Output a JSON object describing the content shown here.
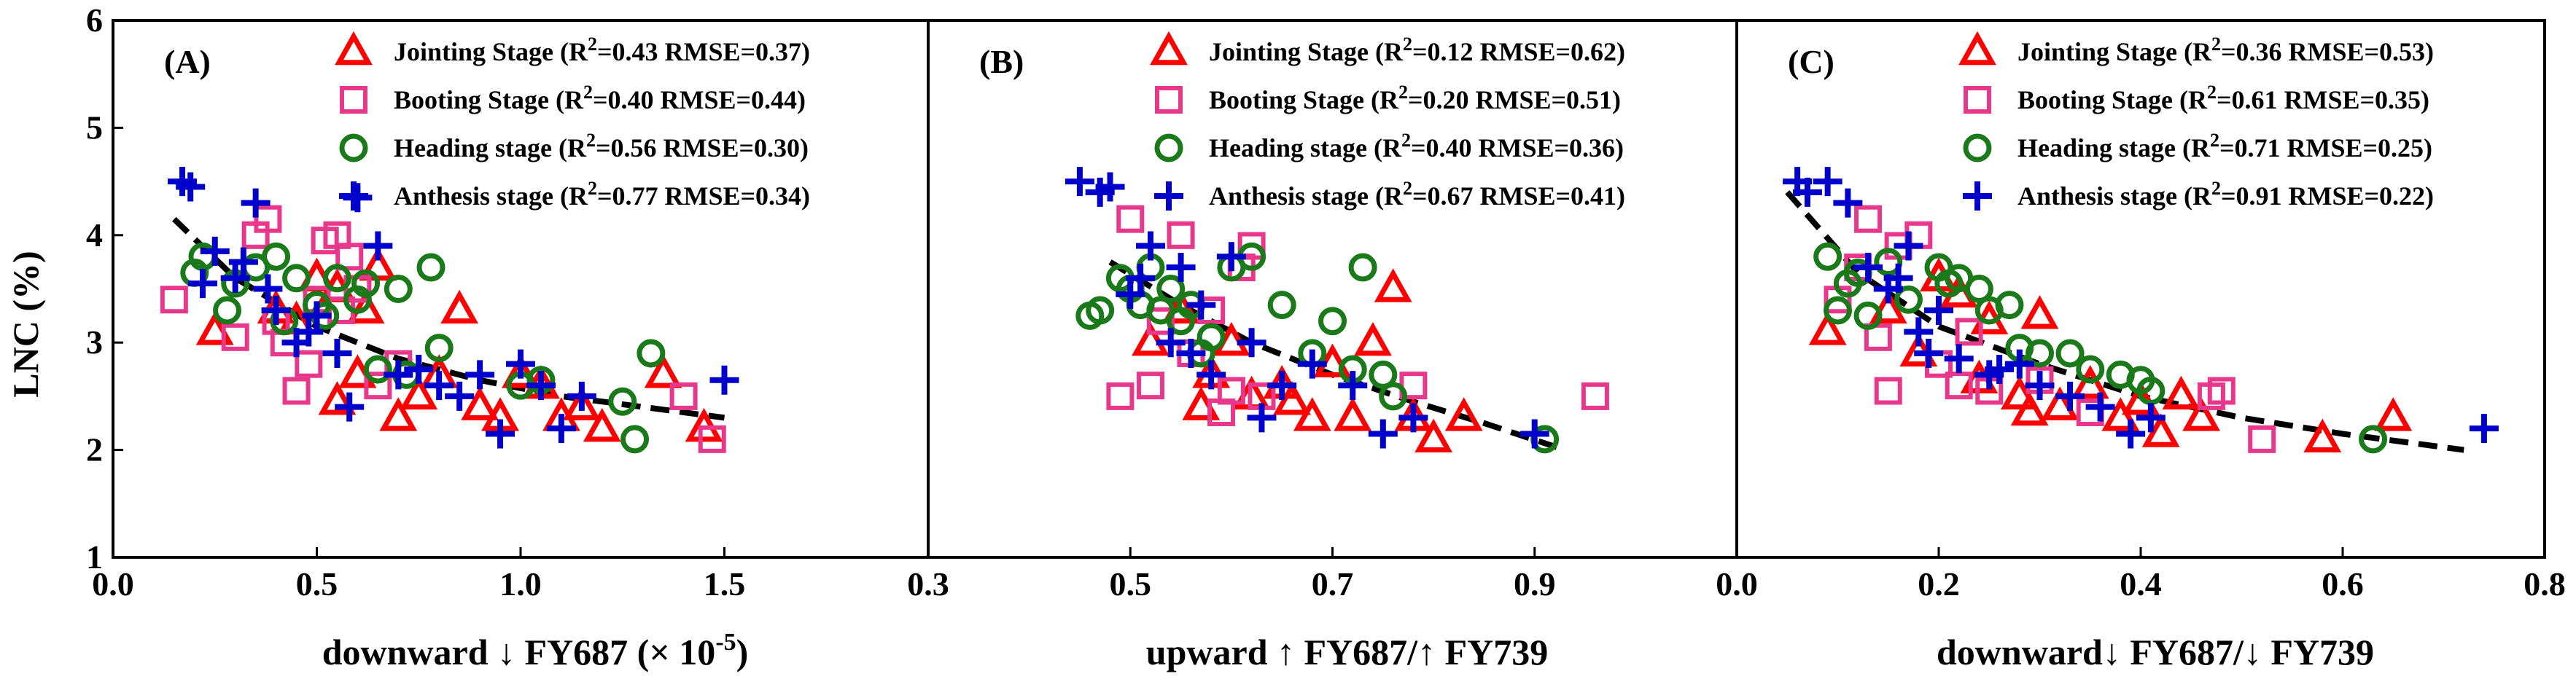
{
  "figure": {
    "ylabel": "LNC (%)",
    "ylim": [
      1,
      6
    ],
    "yticks": [
      1,
      2,
      3,
      4,
      5,
      6
    ]
  },
  "chart_data": [
    {
      "type": "scatter",
      "panel_label": "(A)",
      "xlabel": "downward ↓ FY687 (× 10",
      "xlabel_sup": "-5",
      "xlabel_end": ")",
      "xlim": [
        0.0,
        2.0
      ],
      "xticks": [
        0.0,
        0.5,
        1.0,
        1.5,
        2.0
      ],
      "xtick_labels": [
        "0.0",
        "0.5",
        "1.0",
        "1.5",
        ""
      ],
      "legend": [
        {
          "stage": "Jointing Stage",
          "stats": "=0.43 RMSE=0.37)"
        },
        {
          "stage": "Booting Stage",
          "stats": "=0.40 RMSE=0.44)"
        },
        {
          "stage": "Heading stage",
          "stats": "=0.56 RMSE=0.30)"
        },
        {
          "stage": "Anthesis stage",
          "stats": "=0.77 RMSE=0.34)"
        }
      ],
      "fit_curve": {
        "x": [
          0.15,
          0.3,
          0.5,
          0.7,
          0.9,
          1.1,
          1.3,
          1.5
        ],
        "y": [
          4.15,
          3.6,
          3.15,
          2.85,
          2.65,
          2.5,
          2.4,
          2.3
        ]
      },
      "series": [
        {
          "name": "Jointing Stage",
          "marker": "triangle",
          "color": "#ff0000",
          "x": [
            0.25,
            0.45,
            0.5,
            0.55,
            0.6,
            0.62,
            0.65,
            0.7,
            0.75,
            0.8,
            0.85,
            0.9,
            0.95,
            1.0,
            1.05,
            1.1,
            1.15,
            1.2,
            1.35,
            1.45,
            0.4,
            0.55
          ],
          "y": [
            3.1,
            3.2,
            3.6,
            3.5,
            2.7,
            3.3,
            3.7,
            2.3,
            2.5,
            2.7,
            3.3,
            2.4,
            2.3,
            2.7,
            2.6,
            2.3,
            2.4,
            2.2,
            2.7,
            2.2,
            3.3,
            2.45
          ]
        },
        {
          "name": "Booting Stage",
          "marker": "square",
          "color": "#e8388c",
          "x": [
            0.15,
            0.3,
            0.35,
            0.38,
            0.4,
            0.45,
            0.48,
            0.5,
            0.52,
            0.55,
            0.58,
            0.6,
            0.65,
            0.7,
            1.4,
            1.47,
            0.42,
            0.56
          ],
          "y": [
            3.4,
            3.05,
            4.0,
            4.15,
            3.2,
            2.55,
            2.8,
            3.4,
            3.95,
            4.0,
            3.8,
            3.5,
            2.6,
            2.8,
            2.5,
            2.1,
            3.0,
            3.3
          ]
        },
        {
          "name": "Heading stage",
          "marker": "circle",
          "color": "#1a7a1a",
          "x": [
            0.2,
            0.22,
            0.28,
            0.3,
            0.35,
            0.4,
            0.42,
            0.45,
            0.5,
            0.52,
            0.6,
            0.62,
            0.7,
            0.72,
            0.78,
            0.8,
            1.0,
            1.05,
            1.25,
            1.28,
            1.32,
            0.55,
            0.65
          ],
          "y": [
            3.65,
            3.8,
            3.3,
            3.55,
            3.7,
            3.8,
            3.2,
            3.6,
            3.35,
            3.25,
            3.4,
            3.55,
            3.5,
            2.7,
            3.7,
            2.95,
            2.6,
            2.65,
            2.45,
            2.1,
            2.9,
            3.6,
            2.75
          ]
        },
        {
          "name": "Anthesis stage",
          "marker": "plus",
          "color": "#0000cc",
          "x": [
            0.17,
            0.19,
            0.22,
            0.25,
            0.3,
            0.32,
            0.35,
            0.38,
            0.4,
            0.45,
            0.5,
            0.55,
            0.6,
            0.65,
            0.7,
            0.75,
            0.8,
            0.85,
            0.9,
            0.95,
            1.0,
            1.05,
            1.1,
            1.15,
            1.5,
            0.48,
            0.58
          ],
          "y": [
            4.5,
            4.45,
            3.55,
            3.85,
            3.6,
            3.75,
            4.3,
            3.5,
            3.3,
            3.0,
            3.25,
            2.9,
            4.35,
            3.9,
            2.7,
            2.75,
            2.6,
            2.5,
            2.7,
            2.15,
            2.8,
            2.6,
            2.2,
            2.5,
            2.65,
            3.1,
            2.4
          ]
        }
      ]
    },
    {
      "type": "scatter",
      "panel_label": "(B)",
      "xlabel": "upward ↑ FY687/↑ FY739",
      "xlabel_sup": "",
      "xlabel_end": "",
      "xlim": [
        0.3,
        1.1
      ],
      "xticks": [
        0.3,
        0.5,
        0.7,
        0.9,
        1.1
      ],
      "xtick_labels": [
        "0.3",
        "0.5",
        "0.7",
        "0.9",
        ""
      ],
      "legend": [
        {
          "stage": "Jointing Stage",
          "stats": "=0.12 RMSE=0.62)"
        },
        {
          "stage": "Booting Stage",
          "stats": "=0.20 RMSE=0.51)"
        },
        {
          "stage": "Heading stage",
          "stats": "=0.40 RMSE=0.36)"
        },
        {
          "stage": "Anthesis stage",
          "stats": "=0.67 RMSE=0.41)"
        }
      ],
      "fit_curve": {
        "x": [
          0.48,
          0.55,
          0.62,
          0.7,
          0.78,
          0.85,
          0.93
        ],
        "y": [
          3.75,
          3.35,
          3.0,
          2.7,
          2.45,
          2.25,
          2.0
        ]
      },
      "series": [
        {
          "name": "Jointing Stage",
          "marker": "triangle",
          "color": "#ff0000",
          "x": [
            0.52,
            0.55,
            0.58,
            0.6,
            0.62,
            0.65,
            0.68,
            0.7,
            0.72,
            0.74,
            0.76,
            0.78,
            0.8,
            0.83,
            0.57,
            0.66
          ],
          "y": [
            3.0,
            3.3,
            2.7,
            3.0,
            2.5,
            2.6,
            2.3,
            2.8,
            2.3,
            3.0,
            3.5,
            2.3,
            2.1,
            2.3,
            2.4,
            2.45
          ]
        },
        {
          "name": "Booting Stage",
          "marker": "square",
          "color": "#e8388c",
          "x": [
            0.49,
            0.5,
            0.52,
            0.55,
            0.56,
            0.58,
            0.6,
            0.61,
            0.62,
            0.63,
            0.78,
            0.96,
            0.53,
            0.59
          ],
          "y": [
            2.5,
            4.15,
            2.6,
            4.0,
            2.9,
            3.3,
            2.55,
            3.7,
            3.9,
            2.5,
            2.6,
            2.5,
            3.2,
            2.35
          ]
        },
        {
          "name": "Heading stage",
          "marker": "circle",
          "color": "#1a7a1a",
          "x": [
            0.46,
            0.47,
            0.49,
            0.5,
            0.51,
            0.52,
            0.53,
            0.55,
            0.56,
            0.57,
            0.6,
            0.62,
            0.65,
            0.68,
            0.7,
            0.72,
            0.73,
            0.75,
            0.76,
            0.91,
            0.54,
            0.58
          ],
          "y": [
            3.25,
            3.3,
            3.6,
            3.5,
            3.35,
            3.7,
            3.3,
            3.2,
            3.35,
            2.9,
            3.7,
            3.8,
            3.35,
            2.9,
            3.2,
            2.75,
            3.7,
            2.7,
            2.5,
            2.1,
            3.5,
            3.05
          ]
        },
        {
          "name": "Anthesis stage",
          "marker": "plus",
          "color": "#0000cc",
          "x": [
            0.45,
            0.47,
            0.48,
            0.5,
            0.52,
            0.54,
            0.55,
            0.56,
            0.58,
            0.6,
            0.62,
            0.63,
            0.65,
            0.68,
            0.72,
            0.75,
            0.78,
            0.9,
            0.51,
            0.57
          ],
          "y": [
            4.5,
            4.4,
            4.45,
            3.45,
            3.9,
            3.0,
            3.7,
            2.9,
            2.7,
            3.8,
            3.0,
            2.3,
            2.6,
            2.8,
            2.6,
            2.15,
            2.3,
            2.15,
            3.6,
            3.35
          ]
        }
      ]
    },
    {
      "type": "scatter",
      "panel_label": "(C)",
      "xlabel": "downward↓ FY687/↓ FY739",
      "xlabel_sup": "",
      "xlabel_end": "",
      "xlim": [
        0.0,
        0.8
      ],
      "xticks": [
        0.0,
        0.2,
        0.4,
        0.6,
        0.8
      ],
      "xtick_labels": [
        "0.0",
        "0.2",
        "0.4",
        "0.6",
        "0.8"
      ],
      "legend": [
        {
          "stage": "Jointing Stage",
          "stats": "=0.36 RMSE=0.53)"
        },
        {
          "stage": "Booting Stage",
          "stats": "=0.61 RMSE=0.35)"
        },
        {
          "stage": "Heading stage",
          "stats": "=0.71 RMSE=0.25)"
        },
        {
          "stage": "Anthesis stage",
          "stats": "=0.91 RMSE=0.22)"
        }
      ],
      "fit_curve": {
        "x": [
          0.05,
          0.12,
          0.2,
          0.3,
          0.4,
          0.5,
          0.6,
          0.72
        ],
        "y": [
          4.4,
          3.65,
          3.15,
          2.8,
          2.5,
          2.3,
          2.15,
          2.0
        ]
      },
      "series": [
        {
          "name": "Jointing Stage",
          "marker": "triangle",
          "color": "#ff0000",
          "x": [
            0.09,
            0.15,
            0.18,
            0.2,
            0.22,
            0.25,
            0.28,
            0.3,
            0.32,
            0.35,
            0.38,
            0.4,
            0.42,
            0.44,
            0.46,
            0.58,
            0.65,
            0.24,
            0.29
          ],
          "y": [
            3.1,
            3.3,
            2.9,
            3.6,
            3.45,
            3.2,
            2.5,
            3.25,
            2.4,
            2.6,
            2.3,
            2.45,
            2.15,
            2.5,
            2.3,
            2.1,
            2.3,
            2.65,
            2.35
          ]
        },
        {
          "name": "Booting Stage",
          "marker": "square",
          "color": "#e8388c",
          "x": [
            0.1,
            0.12,
            0.13,
            0.14,
            0.15,
            0.16,
            0.18,
            0.2,
            0.22,
            0.25,
            0.3,
            0.35,
            0.47,
            0.48,
            0.52,
            0.23
          ],
          "y": [
            3.4,
            3.7,
            4.15,
            3.05,
            2.55,
            3.9,
            4.0,
            2.8,
            2.6,
            2.55,
            2.65,
            2.35,
            2.5,
            2.55,
            2.1,
            3.1
          ]
        },
        {
          "name": "Heading stage",
          "marker": "circle",
          "color": "#1a7a1a",
          "x": [
            0.09,
            0.1,
            0.11,
            0.12,
            0.13,
            0.15,
            0.17,
            0.2,
            0.22,
            0.24,
            0.25,
            0.27,
            0.3,
            0.33,
            0.35,
            0.38,
            0.4,
            0.41,
            0.63,
            0.21,
            0.28
          ],
          "y": [
            3.8,
            3.3,
            3.55,
            3.65,
            3.25,
            3.75,
            3.4,
            3.7,
            3.6,
            3.5,
            3.3,
            3.35,
            2.9,
            2.9,
            2.75,
            2.7,
            2.65,
            2.55,
            2.1,
            3.55,
            2.95
          ]
        },
        {
          "name": "Anthesis stage",
          "marker": "plus",
          "color": "#0000cc",
          "x": [
            0.06,
            0.07,
            0.09,
            0.11,
            0.13,
            0.15,
            0.17,
            0.18,
            0.19,
            0.2,
            0.22,
            0.25,
            0.28,
            0.3,
            0.33,
            0.36,
            0.39,
            0.41,
            0.74,
            0.16,
            0.26
          ],
          "y": [
            4.5,
            4.4,
            4.5,
            4.3,
            3.7,
            3.5,
            3.9,
            3.1,
            2.9,
            3.3,
            2.85,
            2.7,
            2.8,
            2.6,
            2.5,
            2.4,
            2.15,
            2.3,
            2.2,
            3.6,
            2.75
          ]
        }
      ]
    }
  ]
}
